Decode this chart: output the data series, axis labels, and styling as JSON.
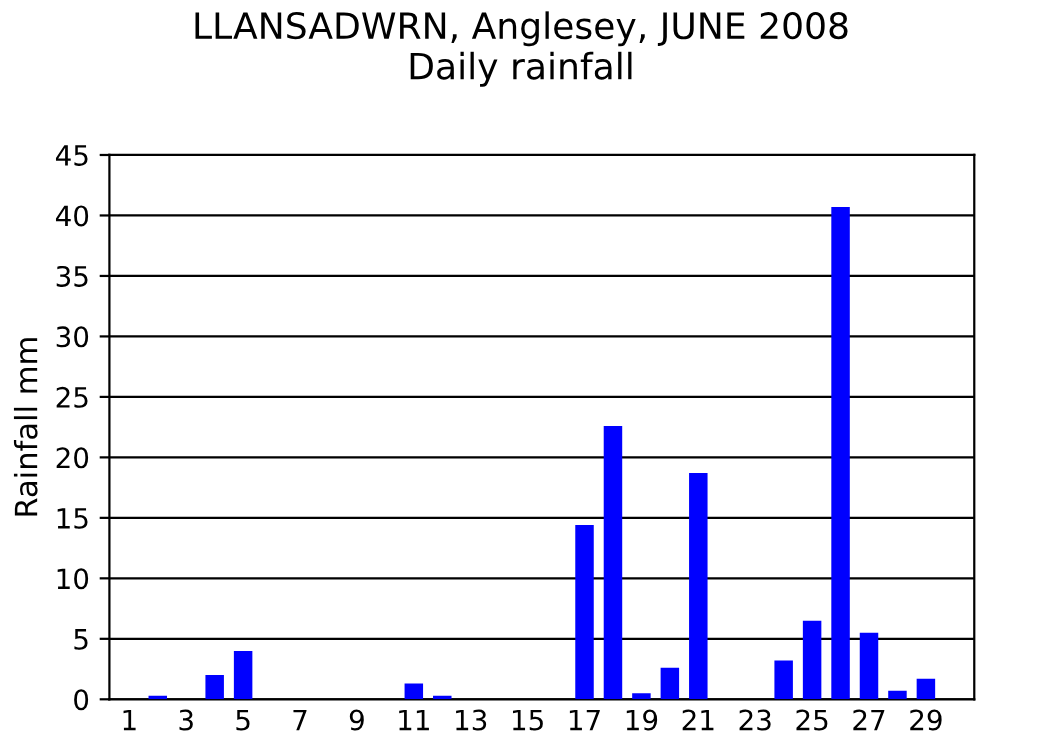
{
  "chart_data": {
    "type": "bar",
    "title": "LLANSADWRN, Anglesey, JUNE 2008\nDaily rainfall",
    "ylabel": "Rainfall mm",
    "categories": [
      "1",
      null,
      "3",
      null,
      "5",
      null,
      "7",
      null,
      "9",
      null,
      "11",
      null,
      "13",
      null,
      "15",
      null,
      "17",
      null,
      "19",
      null,
      "21",
      null,
      "23",
      null,
      "25",
      null,
      "27",
      null,
      "29",
      null
    ],
    "values": [
      0,
      0.3,
      0,
      2,
      4,
      0,
      0,
      0,
      0,
      0,
      1.3,
      0.3,
      0,
      0,
      0,
      0,
      14.4,
      22.6,
      0.5,
      2.6,
      18.7,
      0,
      0,
      3.2,
      6.5,
      40.7,
      5.5,
      0.7,
      1.7,
      0
    ],
    "color": "#0000ff",
    "ylim": [
      0,
      45
    ],
    "yticks": [
      0,
      5,
      10,
      15,
      20,
      25,
      30,
      35,
      40,
      45
    ],
    "grid": "y"
  }
}
